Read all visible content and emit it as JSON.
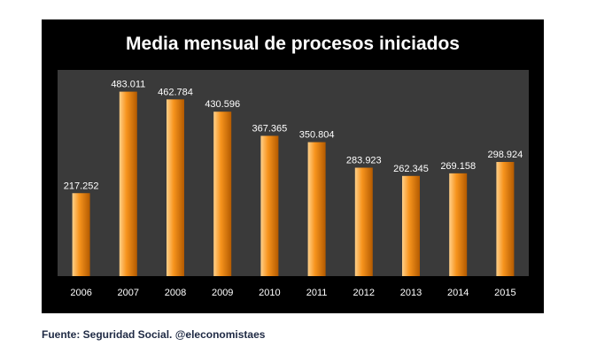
{
  "source_note": "Fuente: Seguridad Social. @eleconomistaes",
  "colors": {
    "frame_background": "#000000",
    "plot_background": "#3a3a3a",
    "bar_light": "#ffd08a",
    "bar_main": "#f7941d",
    "bar_dark": "#b35a00",
    "text": "#ffffff"
  },
  "chart_data": {
    "type": "bar",
    "title": "Media mensual de procesos iniciados",
    "xlabel": "",
    "ylabel": "",
    "categories": [
      "2006",
      "2007",
      "2008",
      "2009",
      "2010",
      "2011",
      "2012",
      "2013",
      "2014",
      "2015"
    ],
    "values": [
      217252,
      483011,
      462784,
      430596,
      367365,
      350804,
      283923,
      262345,
      269158,
      298924
    ],
    "value_labels": [
      "217.252",
      "483.011",
      "462.784",
      "430.596",
      "367.365",
      "350.804",
      "283.923",
      "262.345",
      "269.158",
      "298.924"
    ],
    "ylim": [
      0,
      540000
    ],
    "grid": false,
    "legend": "none"
  }
}
